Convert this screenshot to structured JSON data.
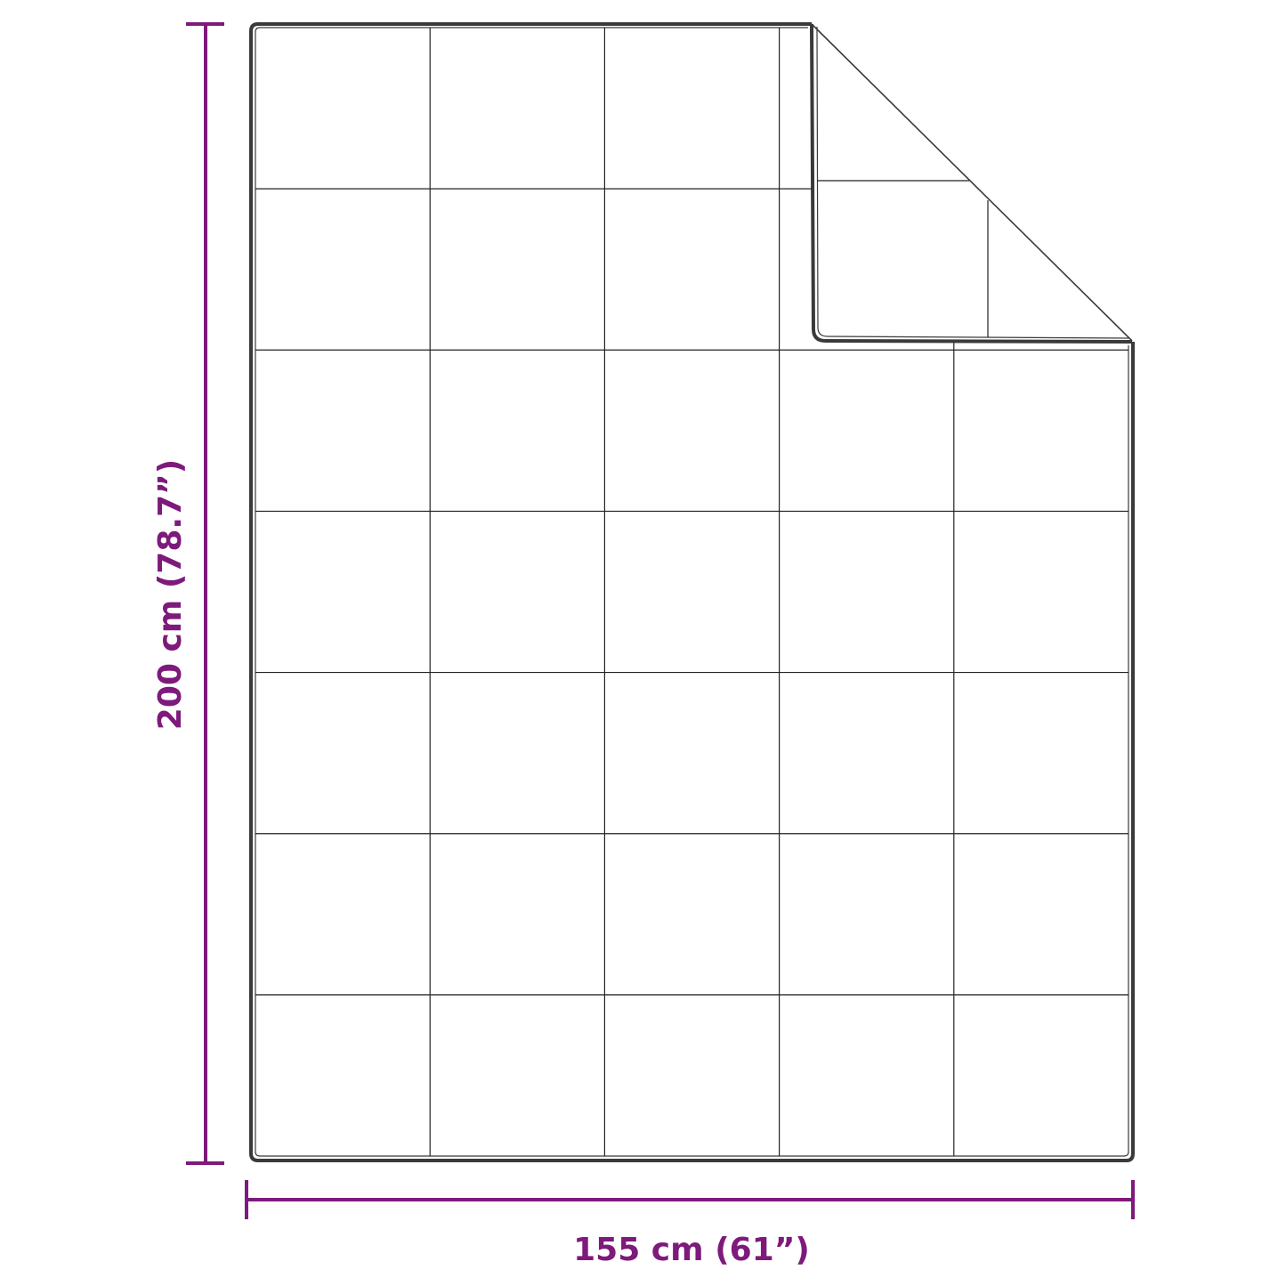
{
  "dimensions": {
    "height_label": "200 cm (78.7”)",
    "width_label": "155 cm (61”)"
  },
  "quilt": {
    "columns": 5,
    "rows": 7,
    "folded_corner": "top-right"
  },
  "colors": {
    "dimension_line": "#7d1a7b",
    "outline": "#3a3a3a",
    "stitch": "#222222"
  }
}
